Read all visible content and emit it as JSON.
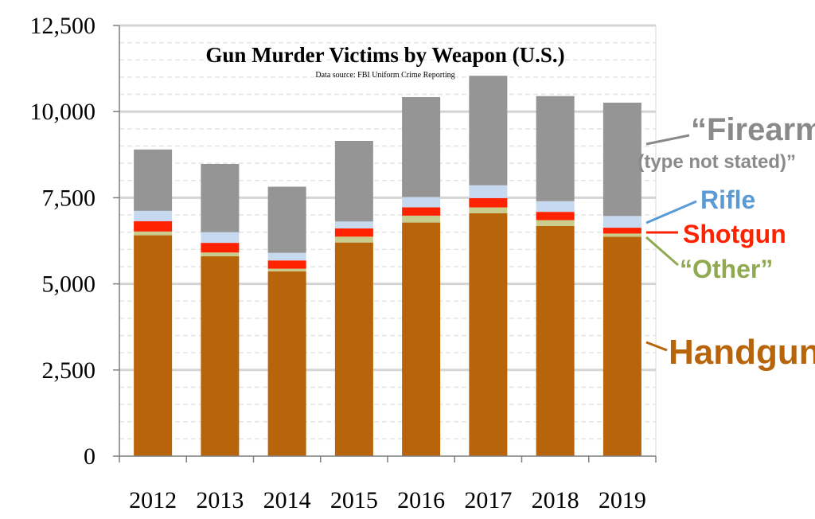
{
  "chart_data": {
    "type": "bar",
    "stacked": true,
    "title": "Gun Murder Victims by Weapon (U.S.)",
    "subtitle": "Data source: FBI Uniform Crime Reporting",
    "categories": [
      "2012",
      "2013",
      "2014",
      "2015",
      "2016",
      "2017",
      "2018",
      "2019"
    ],
    "ylim": [
      0,
      12500
    ],
    "yticks": [
      0,
      2500,
      5000,
      7500,
      10000,
      12500
    ],
    "ytick_labels": [
      "0",
      "2,500",
      "5,000",
      "7,500",
      "10,000",
      "12,500"
    ],
    "grid": true,
    "series": [
      {
        "name": "Handgun",
        "color": "#b8640a",
        "values": [
          6410,
          5800,
          5360,
          6200,
          6780,
          7050,
          6680,
          6370
        ]
      },
      {
        "name": "“Other”",
        "color": "#c8cc8c",
        "values": [
          110,
          110,
          80,
          170,
          200,
          170,
          170,
          90
        ]
      },
      {
        "name": "Shotgun",
        "color": "#ff2200",
        "values": [
          300,
          280,
          240,
          240,
          240,
          270,
          240,
          170
        ]
      },
      {
        "name": "Rifle",
        "color": "#c6d9ee",
        "values": [
          300,
          310,
          220,
          200,
          300,
          370,
          310,
          340
        ]
      },
      {
        "name": "“Firearm (type not stated)”",
        "color": "#959595",
        "values": [
          1780,
          1980,
          1920,
          2340,
          2900,
          3180,
          3050,
          3290
        ]
      }
    ],
    "legend": [
      {
        "text": "“Firearm",
        "series": 4,
        "color": "#8a8a8a",
        "size": 40
      },
      {
        "text": "(type not stated)”",
        "series": 4,
        "color": "#8a8a8a",
        "size": 24
      },
      {
        "text": "Rifle",
        "series": 3,
        "color": "#5a9bd5",
        "size": 32
      },
      {
        "text": "Shotgun",
        "series": 2,
        "color": "#ff2200",
        "size": 32
      },
      {
        "text": "“Other”",
        "series": 1,
        "color": "#8faa50",
        "size": 32
      },
      {
        "text": "Handgun",
        "series": 0,
        "color": "#b8640a",
        "size": 44
      }
    ],
    "legend_position": "right"
  }
}
